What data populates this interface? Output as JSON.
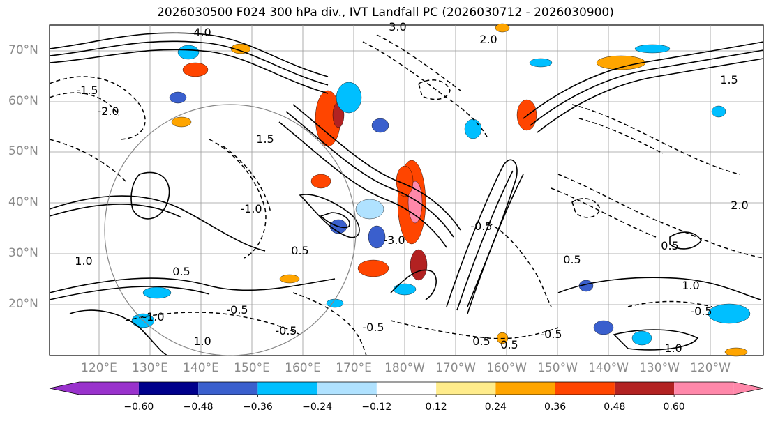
{
  "title": "2026030500 F024 300 hPa div., IVT Landfall PC (2026030712 - 2026030900)",
  "map": {
    "lat_labels": [
      "70°N",
      "60°N",
      "50°N",
      "40°N",
      "30°N",
      "20°N"
    ],
    "lon_labels": [
      "120°E",
      "130°E",
      "140°E",
      "150°E",
      "160°E",
      "170°E",
      "180°W",
      "170°W",
      "160°W",
      "150°W",
      "140°W",
      "130°W",
      "120°W"
    ],
    "contour_labels": [
      "4.0",
      "3.0",
      "2.0",
      "1.5",
      "1.0",
      "0.5",
      "-0.5",
      "-1.0",
      "-1.5",
      "-2.0",
      "-3.0",
      "1.0",
      "-0.5",
      "0.5",
      "-0.5",
      "1.0",
      "0.5",
      "-0.5",
      "0.5",
      "-0.5",
      "1.0",
      "1.5",
      "2.0",
      "-0.5",
      "0.5",
      "-1.0",
      "0.5"
    ]
  },
  "colorbar": {
    "tick_labels": [
      "−0.60",
      "−0.48",
      "−0.36",
      "−0.24",
      "−0.12",
      "0.12",
      "0.24",
      "0.36",
      "0.48",
      "0.60"
    ],
    "colors": [
      "#9932cc",
      "#00008b",
      "#3a5fcd",
      "#00bfff",
      "#b0e2ff",
      "#ffffff",
      "#ffec8b",
      "#ffa500",
      "#ff4500",
      "#b22222",
      "#ff88aa"
    ]
  }
}
